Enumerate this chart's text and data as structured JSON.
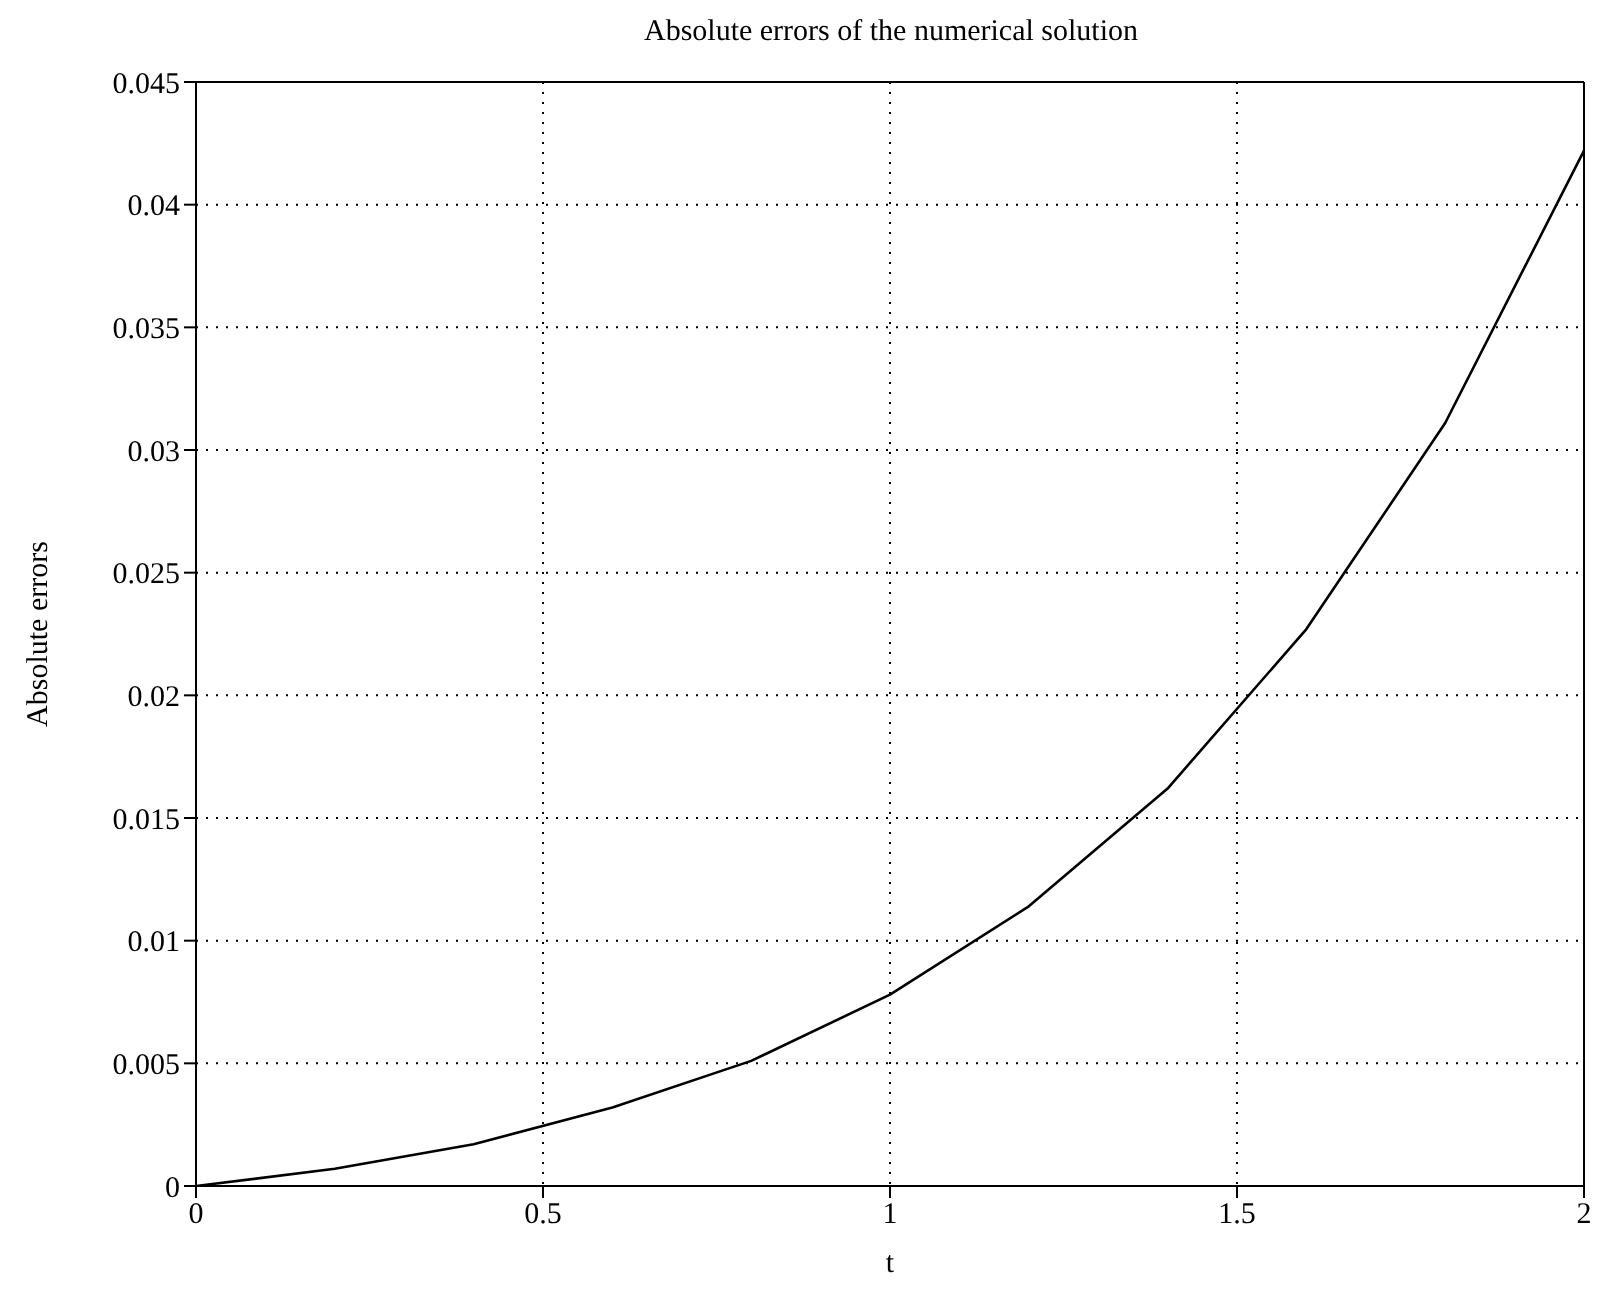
{
  "chart_data": {
    "type": "line",
    "title": "Absolute errors of the numerical solution",
    "xlabel": "t",
    "ylabel": "Absolute errors",
    "x": [
      0,
      0.2,
      0.4,
      0.6,
      0.8,
      1.0,
      1.2,
      1.4,
      1.6,
      1.8,
      2.0
    ],
    "series": [
      {
        "color": "#000000",
        "values": [
          0,
          0.0007,
          0.0017,
          0.0032,
          0.0051,
          0.0078,
          0.0114,
          0.0162,
          0.0227,
          0.0311,
          0.0422
        ]
      }
    ],
    "xlim": [
      0,
      2
    ],
    "xticks": [
      0,
      0.5,
      1,
      1.5,
      2
    ],
    "ylim": [
      0,
      0.045
    ],
    "yticks": [
      0,
      0.005,
      0.01,
      0.015,
      0.02,
      0.025,
      0.03,
      0.035,
      0.04,
      0.045
    ],
    "grid": true,
    "legend": false,
    "marker": "none",
    "line_style": "solid"
  }
}
